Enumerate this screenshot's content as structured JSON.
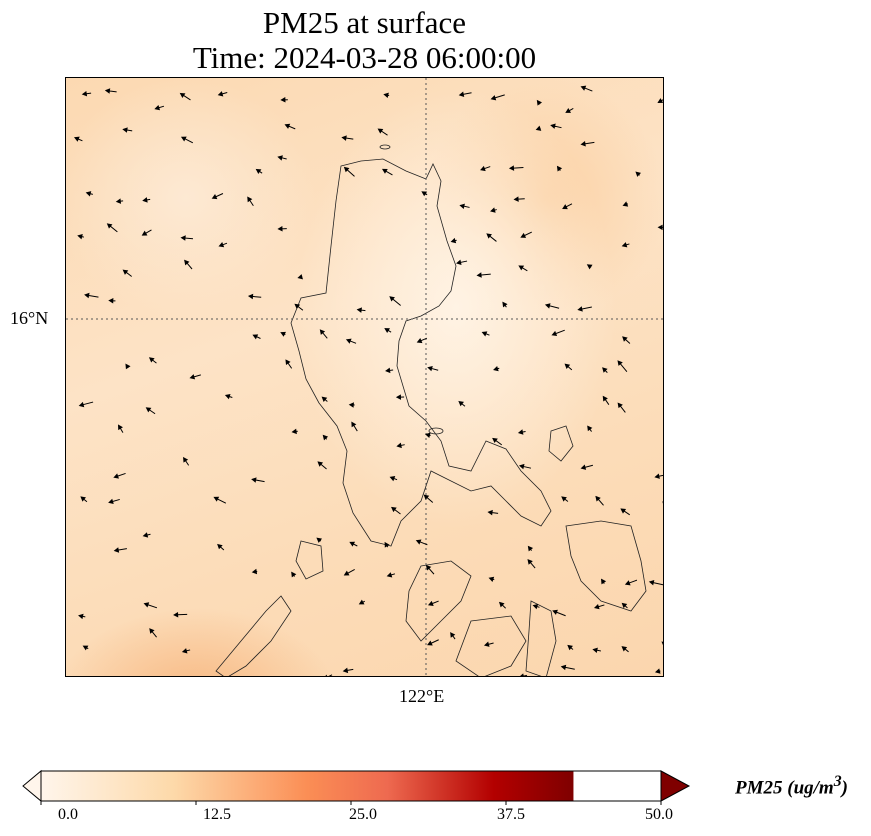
{
  "title": {
    "line1": "PM25 at surface",
    "line2": "Time: 2024-03-28 06:00:00"
  },
  "axes": {
    "lat_label": "16°N",
    "lon_label": "122°E"
  },
  "colorbar": {
    "label": "PM25 (ug/m",
    "label_sup": "3",
    "label_end": ")",
    "min": 0,
    "max": 50,
    "ticks": [
      "0.0",
      "12.5",
      "25.0",
      "37.5",
      "50.0"
    ],
    "colors": [
      "#fff5eb",
      "#fdd9a9",
      "#fdae6b",
      "#f16a4a",
      "#b30000",
      "#7f0000"
    ],
    "extend": "both"
  },
  "field": {
    "variable": "PM25",
    "units": "ug/m3",
    "range_shown": [
      0,
      12
    ],
    "overlay": "wind vectors"
  }
}
